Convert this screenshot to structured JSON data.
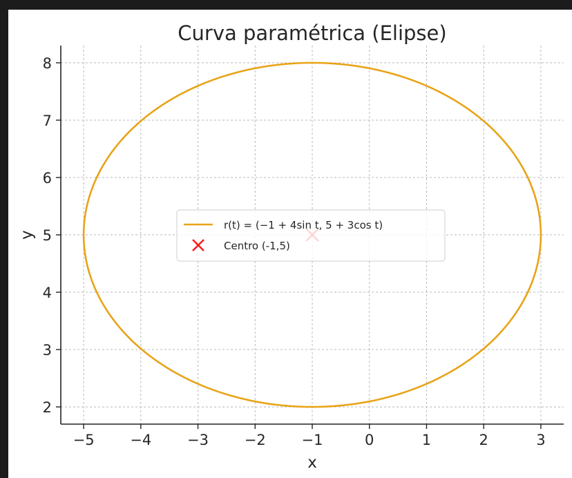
{
  "chart_data": {
    "type": "line",
    "title": "Curva paramétrica (Elipse)",
    "xlabel": "x",
    "ylabel": "y",
    "xlim": [
      -5.4,
      3.4
    ],
    "ylim": [
      1.7,
      8.3
    ],
    "xticks": [
      -5,
      -4,
      -3,
      -2,
      -1,
      0,
      1,
      2,
      3
    ],
    "xtick_labels": [
      "−5",
      "−4",
      "−3",
      "−2",
      "−1",
      "0",
      "1",
      "2",
      "3"
    ],
    "yticks": [
      2,
      3,
      4,
      5,
      6,
      7,
      8
    ],
    "ytick_labels": [
      "2",
      "3",
      "4",
      "5",
      "6",
      "7",
      "8"
    ],
    "grid": true,
    "legend_position": "center",
    "series": [
      {
        "name": "r(t) = (−1 + 4sin t, 5 + 3cos t)",
        "kind": "parametric-curve",
        "x_expr": "-1 + 4*sin(t)",
        "y_expr": "5 + 3*cos(t)",
        "t_range": [
          0,
          6.2832
        ],
        "color": "#e8a317"
      },
      {
        "name": "Centro (-1,5)",
        "kind": "point",
        "marker": "x",
        "x": [
          -1
        ],
        "y": [
          5
        ],
        "color": "#ff1a1a"
      }
    ]
  }
}
